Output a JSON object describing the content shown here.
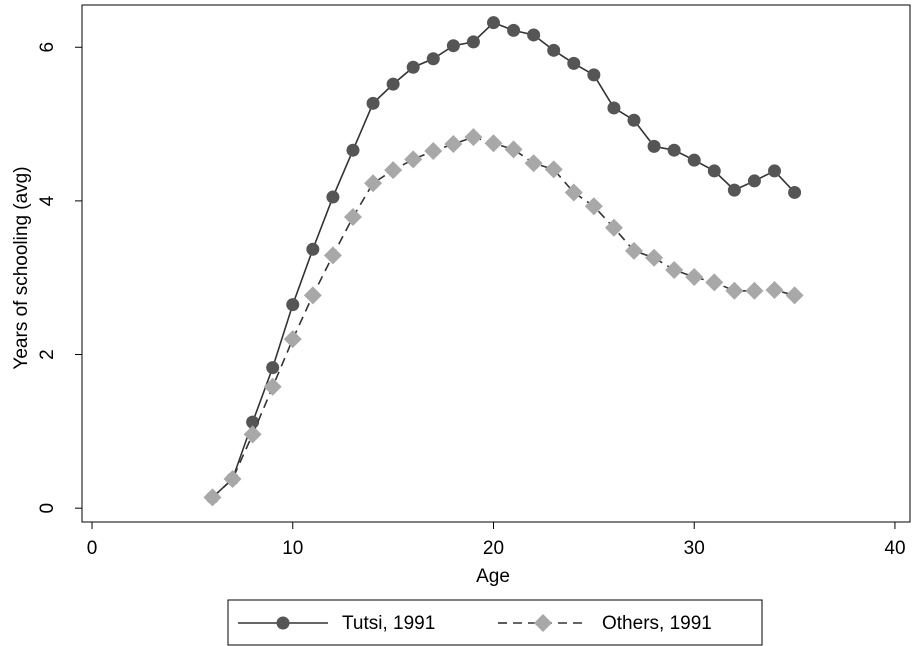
{
  "chart_data": {
    "type": "line",
    "x_label": "Age",
    "y_label": "Years of schooling (avg)",
    "x": [
      6,
      7,
      8,
      9,
      10,
      11,
      12,
      13,
      14,
      15,
      16,
      17,
      18,
      19,
      20,
      21,
      22,
      23,
      24,
      25,
      26,
      27,
      28,
      29,
      30,
      31,
      32,
      33,
      34,
      35
    ],
    "series": [
      {
        "name": "Tutsi, 1991",
        "color": "#555555",
        "line_color": "#333333",
        "marker": "circle",
        "dashed": false,
        "values": [
          0.14,
          0.38,
          1.12,
          1.83,
          2.65,
          3.37,
          4.05,
          4.66,
          5.27,
          5.52,
          5.74,
          5.85,
          6.02,
          6.07,
          6.32,
          6.22,
          6.16,
          5.96,
          5.79,
          5.64,
          5.21,
          5.05,
          4.71,
          4.66,
          4.53,
          4.39,
          4.14,
          4.26,
          4.39,
          4.11
        ]
      },
      {
        "name": "Others, 1991",
        "color": "#a8a8a8",
        "line_color": "#333333",
        "marker": "diamond",
        "dashed": true,
        "values": [
          0.14,
          0.38,
          0.96,
          1.58,
          2.2,
          2.77,
          3.29,
          3.79,
          4.23,
          4.4,
          4.54,
          4.65,
          4.74,
          4.83,
          4.75,
          4.67,
          4.49,
          4.41,
          4.11,
          3.93,
          3.65,
          3.35,
          3.26,
          3.1,
          3.01,
          2.94,
          2.83,
          2.83,
          2.84,
          2.77
        ]
      }
    ],
    "xlim": [
      -0.5,
      40.75
    ],
    "xticks": [
      0,
      10,
      20,
      30,
      40
    ],
    "ylim": [
      -0.18,
      6.55
    ],
    "yticks": [
      0,
      2,
      4,
      6
    ],
    "grid": false,
    "legend": "bottom"
  }
}
